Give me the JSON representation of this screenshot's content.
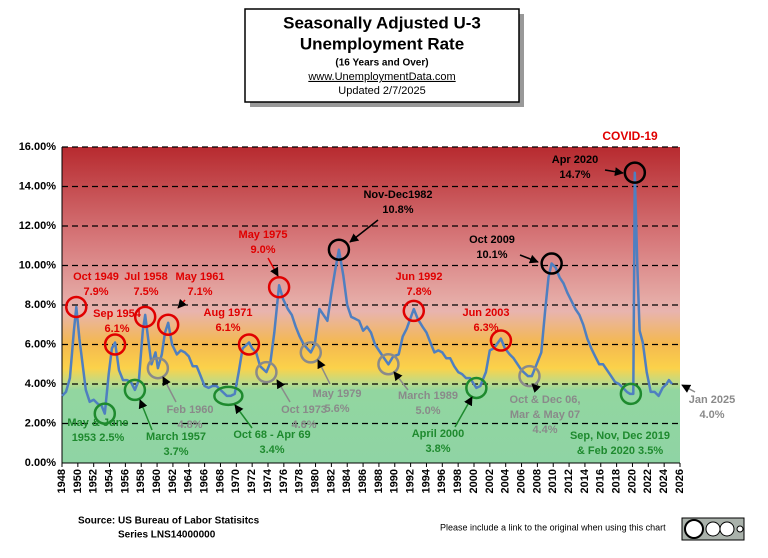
{
  "chart_data": {
    "type": "line",
    "title": [
      "Seasonally Adjusted U-3",
      "Unemployment Rate"
    ],
    "subtitle": [
      "(16 Years and Over)",
      "www.UnemploymentData.com",
      "Updated  2/7/2025"
    ],
    "color": "#4f7fc0",
    "x": [
      1948.0,
      1948.5,
      1949.0,
      1949.5,
      1949.8,
      1950.2,
      1950.6,
      1951.0,
      1951.5,
      1952.0,
      1952.5,
      1953.0,
      1953.4,
      1953.9,
      1954.3,
      1954.7,
      1955.2,
      1955.7,
      1956.2,
      1956.7,
      1957.2,
      1957.7,
      1958.2,
      1958.5,
      1958.9,
      1959.3,
      1959.8,
      1960.1,
      1960.6,
      1961.0,
      1961.4,
      1961.9,
      1962.5,
      1963.0,
      1963.5,
      1964.0,
      1964.5,
      1965.0,
      1965.5,
      1966.0,
      1966.5,
      1967.0,
      1967.5,
      1968.0,
      1968.8,
      1969.3,
      1969.8,
      1970.3,
      1970.8,
      1971.6,
      1972.0,
      1972.5,
      1973.0,
      1973.8,
      1974.3,
      1974.8,
      1975.4,
      1975.9,
      1976.5,
      1977.0,
      1977.5,
      1978.0,
      1978.5,
      1979.4,
      1979.9,
      1980.5,
      1981.0,
      1981.5,
      1982.0,
      1982.5,
      1982.95,
      1983.5,
      1984.0,
      1984.5,
      1985.0,
      1985.5,
      1986.0,
      1986.5,
      1987.0,
      1987.5,
      1988.0,
      1988.5,
      1989.2,
      1989.8,
      1990.5,
      1991.0,
      1991.5,
      1992.4,
      1992.9,
      1993.5,
      1994.0,
      1994.5,
      1995.0,
      1995.5,
      1996.0,
      1996.5,
      1997.0,
      1997.5,
      1998.0,
      1998.5,
      1999.0,
      1999.5,
      2000.3,
      2000.8,
      2001.5,
      2002.0,
      2002.5,
      2003.4,
      2003.9,
      2004.5,
      2005.0,
      2005.5,
      2006.0,
      2006.8,
      2007.3,
      2007.9,
      2008.5,
      2009.0,
      2009.4,
      2009.8,
      2010.3,
      2010.8,
      2011.3,
      2011.8,
      2012.3,
      2012.8,
      2013.3,
      2013.8,
      2014.3,
      2014.8,
      2015.3,
      2015.8,
      2016.3,
      2016.8,
      2017.3,
      2017.8,
      2018.3,
      2018.8,
      2019.3,
      2019.7,
      2020.1,
      2020.3,
      2020.6,
      2020.9,
      2021.3,
      2021.8,
      2022.3,
      2022.8,
      2023.3,
      2023.8,
      2024.3,
      2024.6,
      2025.0
    ],
    "values": [
      3.4,
      3.6,
      4.3,
      6.7,
      7.9,
      6.3,
      5.0,
      3.7,
      3.1,
      3.2,
      3.0,
      2.9,
      2.5,
      4.5,
      5.8,
      6.1,
      4.7,
      4.2,
      4.2,
      4.1,
      3.7,
      4.2,
      6.7,
      7.5,
      6.2,
      5.0,
      5.6,
      4.8,
      5.5,
      6.6,
      7.1,
      6.0,
      5.5,
      5.7,
      5.6,
      5.4,
      4.9,
      4.9,
      4.4,
      3.9,
      3.8,
      3.9,
      3.9,
      3.7,
      3.4,
      3.4,
      3.5,
      4.6,
      5.8,
      6.1,
      5.8,
      5.6,
      4.9,
      4.6,
      5.1,
      6.6,
      9.0,
      8.3,
      7.8,
      7.5,
      6.9,
      6.4,
      6.0,
      5.6,
      6.0,
      7.8,
      7.5,
      7.2,
      8.6,
      9.8,
      10.8,
      9.5,
      8.0,
      7.4,
      7.3,
      7.2,
      6.7,
      6.9,
      6.6,
      6.0,
      5.7,
      5.4,
      5.0,
      5.4,
      5.5,
      6.4,
      6.8,
      7.8,
      7.3,
      6.9,
      6.6,
      6.1,
      5.6,
      5.7,
      5.6,
      5.3,
      5.3,
      4.9,
      4.6,
      4.5,
      4.3,
      4.3,
      3.8,
      3.9,
      4.6,
      5.7,
      5.8,
      6.3,
      5.8,
      5.5,
      5.3,
      5.0,
      4.7,
      4.4,
      4.4,
      5.0,
      5.6,
      7.8,
      9.4,
      10.1,
      9.9,
      9.4,
      9.1,
      8.6,
      8.2,
      7.8,
      7.5,
      7.0,
      6.3,
      5.8,
      5.4,
      5.0,
      5.0,
      4.7,
      4.4,
      4.1,
      4.0,
      3.8,
      3.6,
      3.5,
      3.5,
      14.7,
      10.2,
      6.7,
      6.1,
      4.6,
      3.6,
      3.6,
      3.4,
      3.8,
      4.0,
      4.2,
      4.0
    ],
    "xlim": [
      1948,
      2026
    ],
    "xticks": [
      1948,
      1950,
      1952,
      1954,
      1956,
      1958,
      1960,
      1962,
      1964,
      1966,
      1968,
      1970,
      1972,
      1974,
      1976,
      1978,
      1980,
      1982,
      1984,
      1986,
      1988,
      1990,
      1992,
      1994,
      1996,
      1998,
      2000,
      2002,
      2004,
      2006,
      2008,
      2010,
      2012,
      2014,
      2016,
      2018,
      2020,
      2022,
      2024,
      2026
    ],
    "ylim": [
      0,
      16
    ],
    "yticks": [
      {
        "value": 0,
        "label": "0.00%"
      },
      {
        "value": 2,
        "label": "2.00%"
      },
      {
        "value": 4,
        "label": "4.00%"
      },
      {
        "value": 6,
        "label": "6.00%"
      },
      {
        "value": 8,
        "label": "8.00%"
      },
      {
        "value": 10,
        "label": "10.00%"
      },
      {
        "value": 12,
        "label": "12.00%"
      },
      {
        "value": 14,
        "label": "14.00%"
      },
      {
        "value": 16,
        "label": "16.00%"
      }
    ],
    "grid": true,
    "annotations": [
      {
        "text": [
          "Oct 1949",
          "7.9%"
        ],
        "color": "#e00000"
      },
      {
        "text": [
          "Sep 1954",
          "6.1%"
        ],
        "color": "#e00000"
      },
      {
        "text": [
          "Jul 1958",
          "7.5%"
        ],
        "color": "#e00000"
      },
      {
        "text": [
          "May 1961",
          "7.1%"
        ],
        "color": "#e00000"
      },
      {
        "text": [
          "Aug 1971",
          "6.1%"
        ],
        "color": "#e00000"
      },
      {
        "text": [
          "May 1975",
          "9.0%"
        ],
        "color": "#e00000"
      },
      {
        "text": [
          "Nov-Dec1982",
          "10.8%"
        ],
        "color": "#000000"
      },
      {
        "text": [
          "Jun 1992",
          "7.8%"
        ],
        "color": "#e00000"
      },
      {
        "text": [
          "Jun 2003",
          "6.3%"
        ],
        "color": "#e00000"
      },
      {
        "text": [
          "Oct 2009",
          "10.1%"
        ],
        "color": "#000000"
      },
      {
        "text": [
          "Apr 2020",
          "14.7%"
        ],
        "color": "#000000"
      },
      {
        "text": [
          "May & June",
          "1953  2.5%"
        ],
        "color": "#1e8a2e"
      },
      {
        "text": [
          "March 1957",
          "3.7%"
        ],
        "color": "#1e8a2e"
      },
      {
        "text": [
          "Oct 68 - Apr 69",
          "3.4%"
        ],
        "color": "#1e8a2e"
      },
      {
        "text": [
          "April 2000",
          "3.8%"
        ],
        "color": "#1e8a2e"
      },
      {
        "text": [
          "Sep, Nov, Dec 2019",
          "& Feb 2020  3.5%"
        ],
        "color": "#1e8a2e"
      },
      {
        "text": [
          "Feb 1960",
          "4.8%"
        ],
        "color": "#8a8a8a"
      },
      {
        "text": [
          "Oct 1973",
          "4.6%"
        ],
        "color": "#8a8a8a"
      },
      {
        "text": [
          "May 1979",
          "5.6%"
        ],
        "color": "#8a8a8a"
      },
      {
        "text": [
          "March 1989",
          "5.0%"
        ],
        "color": "#8a8a8a"
      },
      {
        "text": [
          "Oct & Dec 06,",
          "Mar & May 07",
          "4.4%"
        ],
        "color": "#8a8a8a"
      },
      {
        "text": [
          "Jan 2025",
          "4.0%"
        ],
        "color": "#8a8a8a"
      }
    ],
    "covid_label": "COVID-19",
    "source": [
      "Source:  US  Bureau of Labor Statisitcs",
      "Series LNS14000000"
    ],
    "note": "Please include a link to the original when using this chart"
  }
}
